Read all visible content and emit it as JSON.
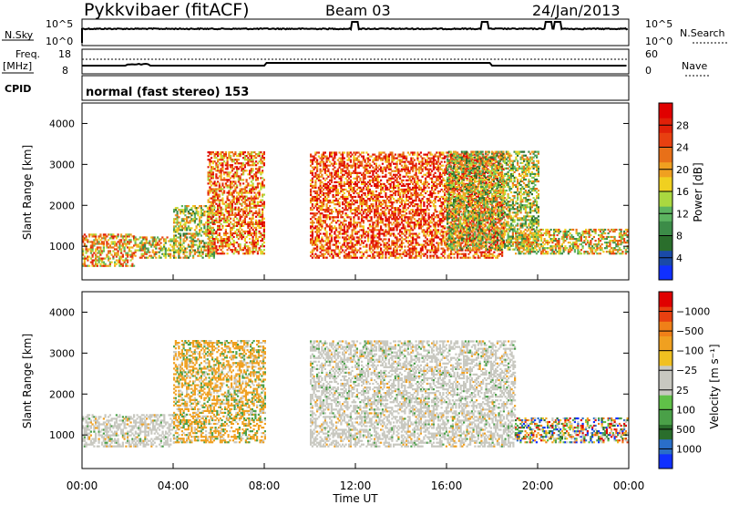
{
  "header": {
    "station": "Pykkvibaer (fitACF)",
    "beam": "Beam 03",
    "date": "24/Jan/2013"
  },
  "nsky_panel": {
    "left_label": "N.Sky",
    "right_label": "N.Search",
    "left_ticks": [
      "10^5",
      "10^0"
    ],
    "right_ticks": [
      "10^5",
      "10^0"
    ],
    "spikes_hours": [
      12.0,
      17.7,
      20.5,
      20.9
    ]
  },
  "freq_panel": {
    "left_label_1": "Freq.",
    "left_label_2": "[MHz]",
    "right_label": "Nave",
    "left_ticks": [
      "18",
      "8"
    ],
    "right_ticks": [
      "60",
      "0"
    ]
  },
  "cpid_panel": {
    "label": "CPID",
    "text": "normal (fast stereo) 153"
  },
  "chart_data": [
    {
      "type": "heatmap",
      "name": "power",
      "ylabel": "Slant Range [km]",
      "ylim": [
        180,
        4500
      ],
      "yticks": [
        "1000",
        "2000",
        "3000",
        "4000"
      ],
      "xlim": [
        0,
        24
      ],
      "colorbar": {
        "label": "Power [dB]",
        "ticks": [
          "4",
          "8",
          "12",
          "16",
          "20",
          "24",
          "28"
        ],
        "colors": [
          "#1030ff",
          "#1a4aa8",
          "#2a6e2c",
          "#3c8c48",
          "#5cb460",
          "#aad840",
          "#f0d020",
          "#f0a020",
          "#e87018",
          "#e84010",
          "#e02008",
          "#e00000"
        ]
      },
      "regions": [
        {
          "x": [
            0.0,
            2.3
          ],
          "y": [
            500,
            1300
          ],
          "level": 7
        },
        {
          "x": [
            2.3,
            4.0
          ],
          "y": [
            700,
            1200
          ],
          "level": 6
        },
        {
          "x": [
            4.0,
            5.8
          ],
          "y": [
            700,
            2000
          ],
          "level": 5
        },
        {
          "x": [
            5.5,
            8.0
          ],
          "y": [
            800,
            3300
          ],
          "level": 8
        },
        {
          "x": [
            10.0,
            18.5
          ],
          "y": [
            700,
            3300
          ],
          "level": 9
        },
        {
          "x": [
            16.0,
            20.0
          ],
          "y": [
            900,
            3300
          ],
          "level": 5
        },
        {
          "x": [
            19.0,
            24.0
          ],
          "y": [
            800,
            1400
          ],
          "level": 6
        }
      ]
    },
    {
      "type": "heatmap",
      "name": "velocity",
      "ylabel": "Slant Range [km]",
      "ylim": [
        180,
        4500
      ],
      "yticks": [
        "1000",
        "2000",
        "3000",
        "4000"
      ],
      "xlim": [
        0,
        24
      ],
      "xticks": [
        "00:00",
        "04:00",
        "08:00",
        "12:00",
        "16:00",
        "20:00",
        "00:00"
      ],
      "xlabel": "Time UT",
      "colorbar": {
        "label": "Velocity [m s⁻¹]",
        "ticks": [
          "1000",
          "500",
          "100",
          "25",
          "−25",
          "−100",
          "−500",
          "−1000"
        ],
        "colors": [
          "#1030ff",
          "#2a6ec8",
          "#2a6e2c",
          "#4aa048",
          "#60c048",
          "#c8c8c0",
          "#c8c8c0",
          "#f0c020",
          "#f0a020",
          "#f08018",
          "#e84010",
          "#e00000"
        ]
      },
      "regions": [
        {
          "x": [
            0.0,
            4.0
          ],
          "y": [
            700,
            1500
          ],
          "level": "ground"
        },
        {
          "x": [
            4.0,
            8.0
          ],
          "y": [
            800,
            3300
          ],
          "level": "negative"
        },
        {
          "x": [
            10.0,
            19.0
          ],
          "y": [
            700,
            3300
          ],
          "level": "ground"
        },
        {
          "x": [
            19.0,
            24.0
          ],
          "y": [
            800,
            1400
          ],
          "level": "mixed"
        }
      ]
    }
  ]
}
